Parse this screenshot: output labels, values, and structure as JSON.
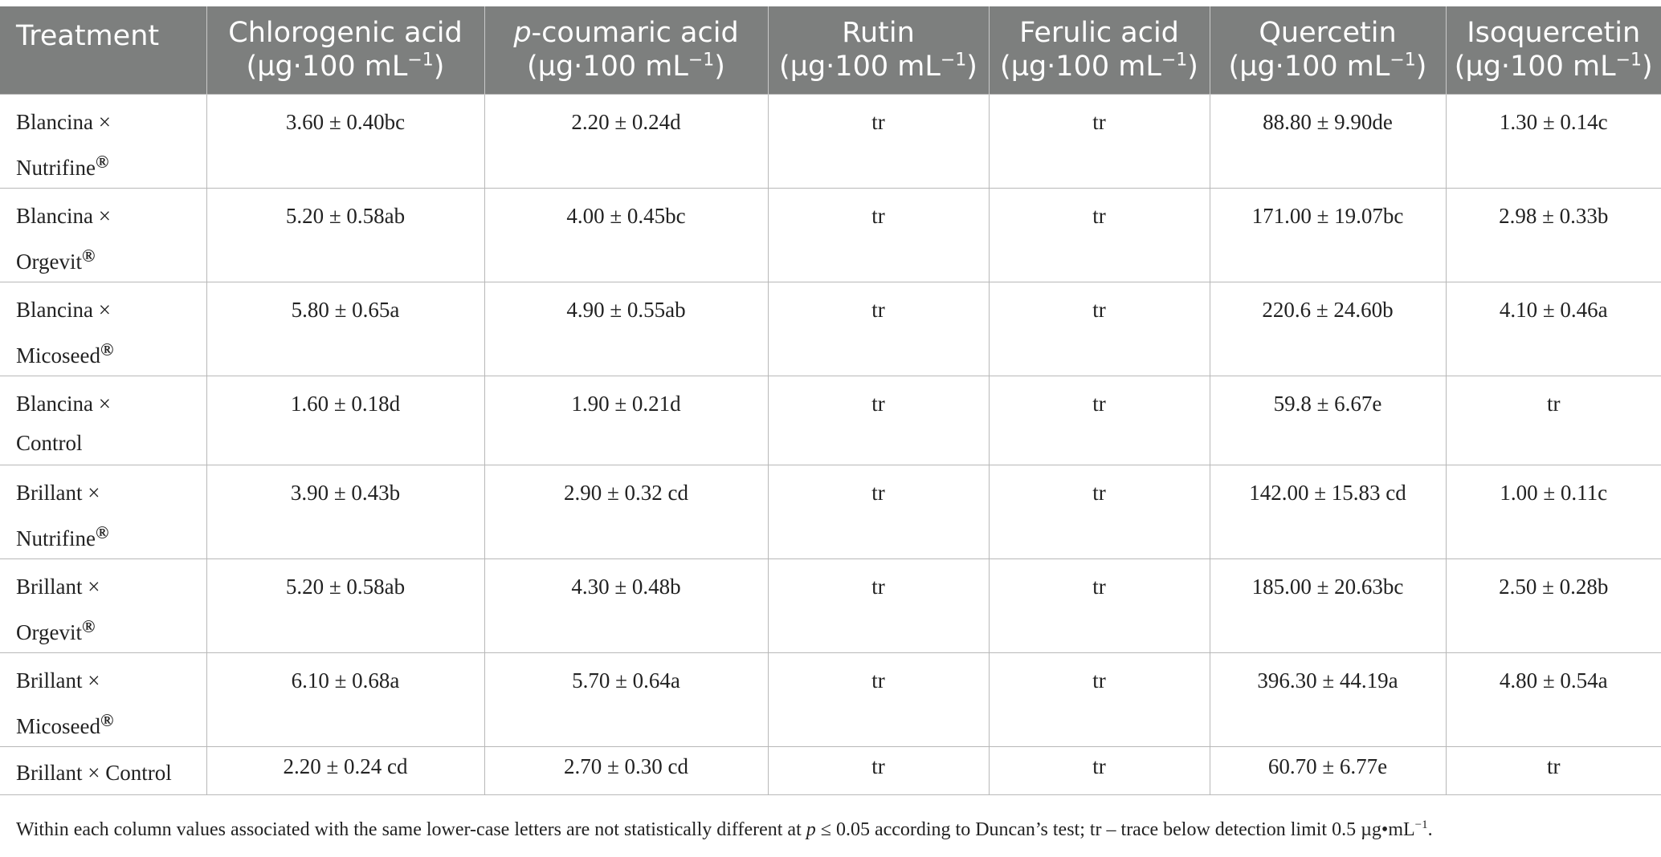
{
  "table": {
    "headers": [
      {
        "line1": "Treatment",
        "line2": ""
      },
      {
        "line1": "Chlorogenic acid",
        "line2": "(µg·100 mL",
        "sup": "−1",
        "close": ")"
      },
      {
        "italic": "p",
        "line1": "-coumaric acid",
        "line2": "(µg·100 mL",
        "sup": "−1",
        "close": ")"
      },
      {
        "line1": "Rutin",
        "line2": "(µg·100 mL",
        "sup": "−1",
        "close": ")"
      },
      {
        "line1": "Ferulic acid",
        "line2": "(µg·100 mL",
        "sup": "−1",
        "close": ")"
      },
      {
        "line1": "Quercetin",
        "line2": "(µg·100 mL",
        "sup": "−1",
        "close": ")"
      },
      {
        "line1": "Isoquercetin",
        "line2": "(µg·100 mL",
        "sup": "−1",
        "close": ")"
      }
    ],
    "rows": [
      {
        "t1": "Blancina ×",
        "t2": "Nutrifine",
        "reg": "®",
        "cells": [
          "3.60 ± 0.40bc",
          "2.20 ± 0.24d",
          "tr",
          "tr",
          "88.80 ± 9.90de",
          "1.30 ± 0.14c"
        ]
      },
      {
        "t1": "Blancina ×",
        "t2": "Orgevit",
        "reg": "®",
        "cells": [
          "5.20 ± 0.58ab",
          "4.00 ± 0.45bc",
          "tr",
          "tr",
          "171.00 ± 19.07bc",
          "2.98 ± 0.33b"
        ]
      },
      {
        "t1": "Blancina ×",
        "t2": "Micoseed",
        "reg": "®",
        "cells": [
          "5.80 ± 0.65a",
          "4.90 ± 0.55ab",
          "tr",
          "tr",
          "220.6 ± 24.60b",
          "4.10 ± 0.46a"
        ]
      },
      {
        "t1": "Blancina ×",
        "t2": "Control",
        "reg": "",
        "cells": [
          "1.60 ± 0.18d",
          "1.90 ± 0.21d",
          "tr",
          "tr",
          "59.8 ± 6.67e",
          "tr"
        ]
      },
      {
        "t1": "Brillant ×",
        "t2": "Nutrifine",
        "reg": "®",
        "cells": [
          "3.90 ± 0.43b",
          "2.90 ± 0.32 cd",
          "tr",
          "tr",
          "142.00 ± 15.83 cd",
          "1.00 ± 0.11c"
        ]
      },
      {
        "t1": "Brillant ×",
        "t2": "Orgevit",
        "reg": "®",
        "cells": [
          "5.20 ± 0.58ab",
          "4.30 ± 0.48b",
          "tr",
          "tr",
          "185.00 ± 20.63bc",
          "2.50 ± 0.28b"
        ]
      },
      {
        "t1": "Brillant ×",
        "t2": "Micoseed",
        "reg": "®",
        "cells": [
          "6.10 ± 0.68a",
          "5.70 ± 0.64a",
          "tr",
          "tr",
          "396.30 ± 44.19a",
          "4.80 ± 0.54a"
        ]
      },
      {
        "t1": "Brillant × Control",
        "t2": "",
        "reg": "",
        "cells": [
          "2.20 ± 0.24 cd",
          "2.70 ± 0.30 cd",
          "tr",
          "tr",
          "60.70 ± 6.77e",
          "tr"
        ]
      }
    ]
  },
  "footnote": {
    "before_p": "Within each column values associated with the same lower-case letters are not statistically different at ",
    "p": "p",
    "after_p": " ≤ 0.05 according to Duncan’s test; tr – trace below detection limit 0.5 µg•mL",
    "sup": "−1",
    "end": "."
  }
}
